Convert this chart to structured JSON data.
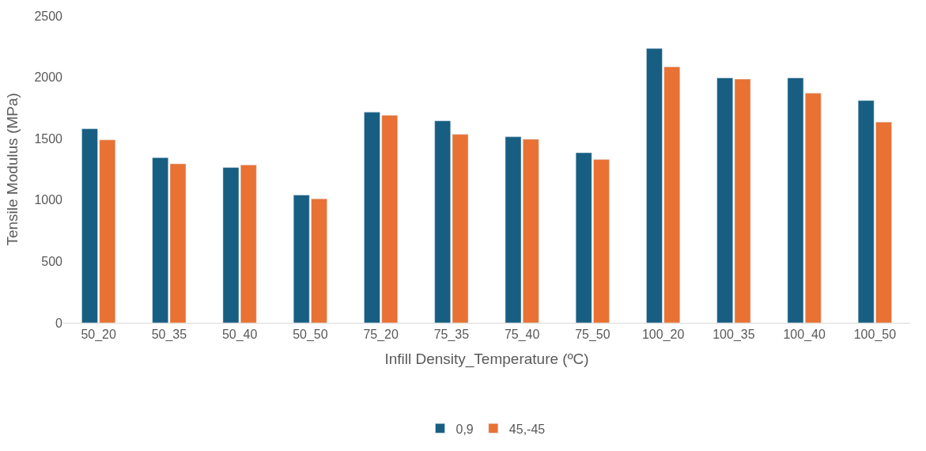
{
  "chart_data": {
    "type": "bar",
    "xlabel": "Infill Density_Temperature (ºC)",
    "ylabel": "Tensile Modulus (MPa)",
    "categories": [
      "50_20",
      "50_35",
      "50_40",
      "50_50",
      "75_20",
      "75_35",
      "75_40",
      "75_50",
      "100_20",
      "100_35",
      "100_40",
      "100_50"
    ],
    "series": [
      {
        "name": "0,9",
        "color": "#175e82",
        "values": [
          1580,
          1345,
          1265,
          1040,
          1715,
          1645,
          1515,
          1385,
          2235,
          1995,
          1995,
          1810
        ]
      },
      {
        "name": "45,-45",
        "color": "#e87133",
        "values": [
          1490,
          1295,
          1285,
          1010,
          1690,
          1535,
          1495,
          1330,
          2085,
          1985,
          1870,
          1635
        ]
      }
    ],
    "ylim": [
      0,
      2500
    ],
    "yticks": [
      0,
      500,
      1000,
      1500,
      2000,
      2500
    ],
    "grid": false,
    "legend": "bottom"
  }
}
